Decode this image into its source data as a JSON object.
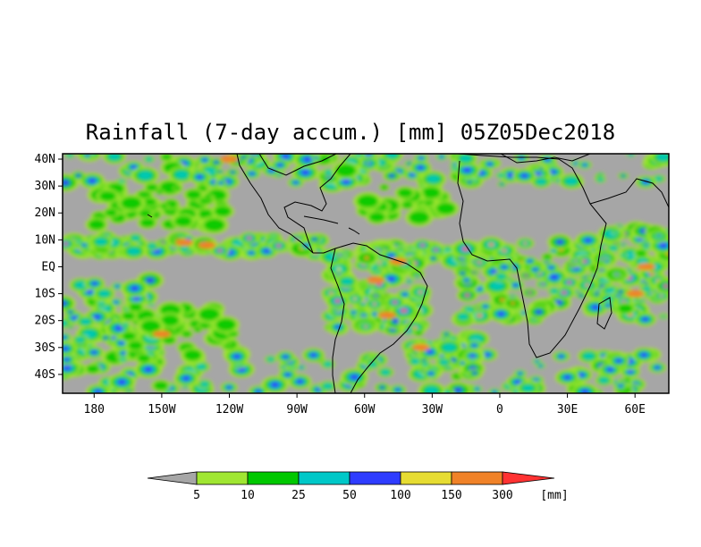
{
  "title": "Rainfall (7-day accum.) [mm] 05Z05Dec2018",
  "map": {
    "lat_ticks": [
      "40N",
      "30N",
      "20N",
      "10N",
      "EQ",
      "10S",
      "20S",
      "30S",
      "40S"
    ],
    "lon_ticks": [
      "180",
      "150W",
      "120W",
      "90W",
      "60W",
      "30W",
      "0",
      "30E",
      "60E"
    ],
    "extent": {
      "lon_min": -194,
      "lon_max": 75,
      "lat_min": -47,
      "lat_max": 42
    },
    "background_color": "#a6a6a6"
  },
  "colorbar": {
    "labels": [
      "5",
      "10",
      "25",
      "50",
      "100",
      "150",
      "300"
    ],
    "unit": "[mm]",
    "colors": [
      "#a6a6a6",
      "#a0e632",
      "#00c800",
      "#00c8c8",
      "#2e3cff",
      "#e6dc32",
      "#f08228",
      "#ff3232"
    ]
  }
}
